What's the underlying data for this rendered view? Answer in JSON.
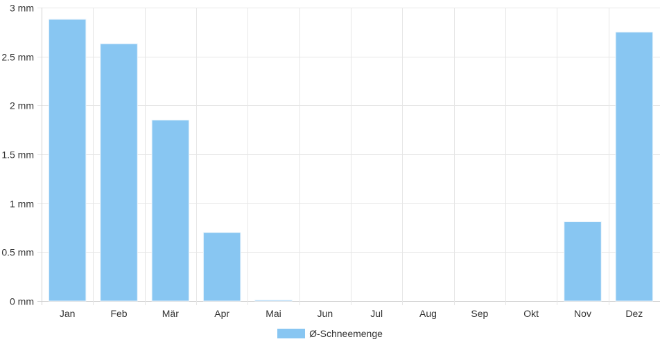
{
  "chart_data": {
    "type": "bar",
    "categories": [
      "Jan",
      "Feb",
      "Mär",
      "Apr",
      "Mai",
      "Jun",
      "Jul",
      "Aug",
      "Sep",
      "Okt",
      "Nov",
      "Dez"
    ],
    "series": [
      {
        "name": "Ø-Schneemenge",
        "values": [
          2.88,
          2.63,
          1.85,
          0.7,
          0.01,
          0,
          0,
          0,
          0,
          0,
          0.81,
          2.75
        ]
      }
    ],
    "y_ticks": [
      "0 mm",
      "0.5 mm",
      "1 mm",
      "1.5 mm",
      "2 mm",
      "2.5 mm",
      "3 mm"
    ],
    "ylim": [
      0,
      3
    ],
    "grid": true,
    "legend_position": "bottom",
    "colors": {
      "bar": "#88c6f2",
      "bar_border": "#e8f3fb",
      "grid": "#e6e6e6",
      "axis": "#cfcfcf"
    }
  }
}
